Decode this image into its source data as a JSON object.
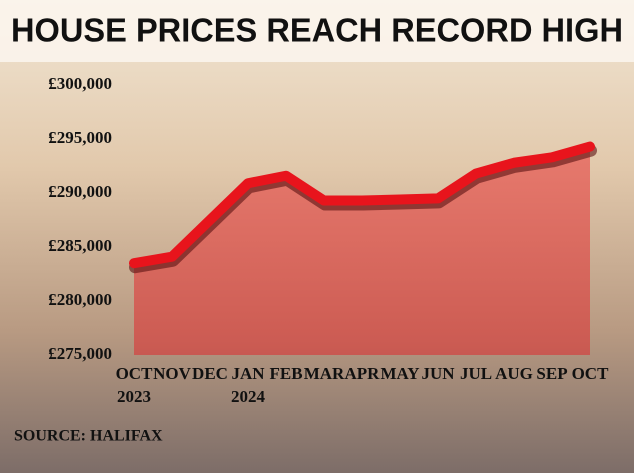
{
  "chart_data": {
    "type": "area",
    "title": "HOUSE PRICES REACH RECORD HIGH",
    "categories": [
      "OCT 2023",
      "NOV",
      "DEC",
      "JAN 2024",
      "FEB",
      "MAR",
      "APR",
      "MAY",
      "JUN",
      "JUL",
      "AUG",
      "SEP",
      "OCT"
    ],
    "values": [
      283500,
      284100,
      287500,
      290900,
      291600,
      289300,
      289300,
      289400,
      289500,
      291800,
      292800,
      293300,
      294300
    ],
    "color": "#e8141c",
    "ylim": [
      275000,
      300000
    ],
    "yticks": [
      {
        "value": 275000,
        "label": "£275,000"
      },
      {
        "value": 280000,
        "label": "£280,000"
      },
      {
        "value": 285000,
        "label": "£285,000"
      },
      {
        "value": 290000,
        "label": "£290,000"
      },
      {
        "value": 295000,
        "label": "£295,000"
      },
      {
        "value": 300000,
        "label": "£300,000"
      }
    ],
    "source": "SOURCE: HALIFAX"
  }
}
